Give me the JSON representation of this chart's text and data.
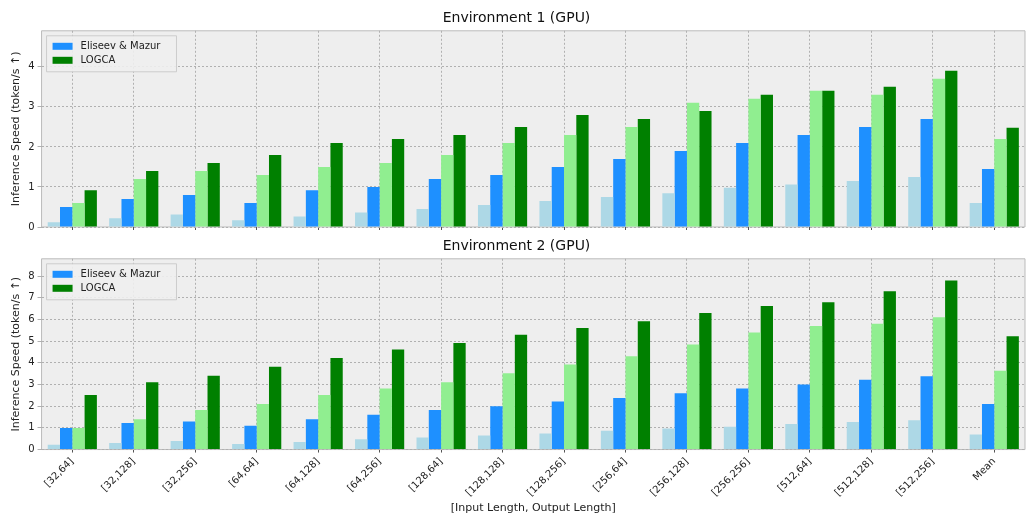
{
  "chart_data": [
    {
      "type": "bar",
      "title": "Environment 1 (GPU)",
      "ylabel": "Inference Speed (token/s ↑)",
      "categories": [
        null,
        null,
        null,
        null,
        null,
        null,
        null,
        null,
        null,
        null,
        null,
        null,
        null,
        null,
        null,
        null
      ],
      "ylim": [
        0,
        4.9
      ],
      "yticks": [
        0,
        1,
        2,
        3,
        4
      ],
      "grid": true,
      "legend": "top left",
      "tick_labels": "y",
      "series": [
        {
          "color": "#add8e6",
          "values": [
            0.12,
            0.22,
            0.31,
            0.17,
            0.26,
            0.36,
            0.45,
            0.55,
            0.65,
            0.75,
            0.84,
            0.98,
            1.06,
            1.15,
            1.25,
            0.6
          ]
        },
        {
          "name": "Eliseev & Mazur",
          "color": "#1e90ff",
          "values": [
            0.5,
            0.7,
            0.8,
            0.6,
            0.92,
            1.0,
            1.2,
            1.3,
            1.5,
            1.7,
            1.9,
            2.1,
            2.3,
            2.5,
            2.7,
            1.45
          ]
        },
        {
          "color": "#90ee90",
          "values": [
            0.6,
            1.2,
            1.4,
            1.3,
            1.5,
            1.6,
            1.8,
            2.1,
            2.3,
            2.5,
            3.1,
            3.2,
            3.4,
            3.3,
            3.7,
            2.2
          ]
        },
        {
          "name": "LOGCA",
          "color": "#008000",
          "values": [
            0.92,
            1.4,
            1.6,
            1.8,
            2.1,
            2.2,
            2.3,
            2.5,
            2.8,
            2.7,
            2.9,
            3.3,
            3.4,
            3.5,
            3.9,
            2.48
          ]
        }
      ]
    },
    {
      "type": "bar",
      "title": "Environment 2 (GPU)",
      "xlabel": "[Input Length, Output Length]",
      "ylabel": "Inference Speed (token/s ↑)",
      "categories": [
        "[32,64]",
        "[32,128]",
        "[32,256]",
        "[64,64]",
        "[64,128]",
        "[64,256]",
        "[128,64]",
        "[128,128]",
        "[128,256]",
        "[256,64]",
        "[256,128]",
        "[256,256]",
        "[512,64]",
        "[512,128]",
        "[512,256]",
        "Mean"
      ],
      "ylim": [
        0,
        8.8
      ],
      "yticks": [
        0,
        1,
        2,
        3,
        4,
        5,
        6,
        7,
        8
      ],
      "grid": true,
      "legend": "top left",
      "series": [
        {
          "color": "#add8e6",
          "values": [
            0.22,
            0.3,
            0.4,
            0.26,
            0.35,
            0.48,
            0.56,
            0.65,
            0.74,
            0.87,
            0.97,
            1.05,
            1.18,
            1.27,
            1.35,
            0.69
          ]
        },
        {
          "name": "Eliseev & Mazur",
          "color": "#1e90ff",
          "values": [
            1.0,
            1.22,
            1.3,
            1.1,
            1.4,
            1.6,
            1.82,
            2.0,
            2.22,
            2.38,
            2.6,
            2.82,
            3.0,
            3.22,
            3.38,
            2.1
          ]
        },
        {
          "color": "#90ee90",
          "values": [
            1.0,
            1.4,
            1.82,
            2.1,
            2.52,
            2.82,
            3.1,
            3.52,
            3.92,
            4.3,
            4.85,
            5.4,
            5.7,
            5.8,
            6.1,
            3.63
          ]
        },
        {
          "name": "LOGCA",
          "color": "#008000",
          "values": [
            2.52,
            3.1,
            3.4,
            3.82,
            4.22,
            4.62,
            4.92,
            5.3,
            5.61,
            5.92,
            6.3,
            6.62,
            6.8,
            7.3,
            7.8,
            5.23
          ]
        }
      ]
    }
  ]
}
